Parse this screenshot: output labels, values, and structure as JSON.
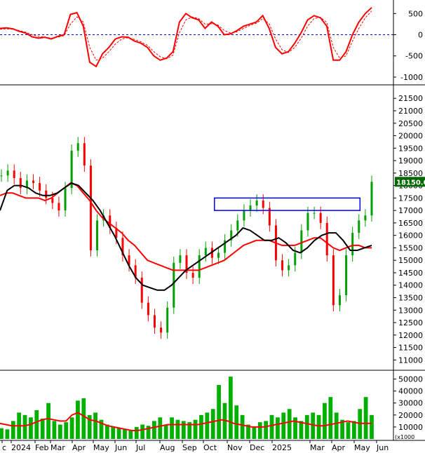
{
  "chart_data": [
    {
      "type": "line",
      "panel": "oscillator",
      "yticks": [
        500,
        0,
        -500,
        -1000
      ],
      "ylim": [
        -1100,
        720
      ],
      "zero_line": true,
      "series": [
        {
          "style": "solid",
          "color": "#ff0000",
          "values": [
            150,
            160,
            140,
            80,
            40,
            -50,
            -80,
            -60,
            -100,
            -40,
            0,
            480,
            520,
            200,
            -650,
            -750,
            -450,
            -300,
            -100,
            -50,
            -60,
            -150,
            -200,
            -300,
            -500,
            -600,
            -550,
            -400,
            300,
            500,
            400,
            350,
            150,
            300,
            200,
            0,
            20,
            100,
            200,
            250,
            300,
            450,
            150,
            -300,
            -450,
            -400,
            -200,
            50,
            350,
            450,
            400,
            200,
            -600,
            -600,
            -400,
            0,
            300,
            500,
            640
          ]
        },
        {
          "style": "dashed",
          "color": "#ff0000",
          "values": [
            130,
            140,
            130,
            100,
            60,
            0,
            -40,
            -60,
            -80,
            -60,
            -20,
            250,
            420,
            300,
            -300,
            -600,
            -550,
            -400,
            -220,
            -100,
            -70,
            -110,
            -170,
            -250,
            -400,
            -520,
            -570,
            -480,
            50,
            350,
            420,
            380,
            250,
            260,
            230,
            100,
            40,
            70,
            150,
            220,
            270,
            380,
            260,
            -100,
            -350,
            -420,
            -300,
            -80,
            200,
            380,
            410,
            290,
            -300,
            -550,
            -500,
            -150,
            150,
            400,
            560
          ]
        }
      ]
    },
    {
      "type": "line",
      "panel": "price",
      "yticks": [
        21500,
        21000,
        20500,
        20000,
        19500,
        19000,
        18500,
        18000,
        17500,
        17000,
        16500,
        16000,
        15500,
        15000,
        14500,
        14000,
        13500,
        13000,
        12500,
        12000,
        11500,
        11000
      ],
      "ylim": [
        10700,
        21900
      ],
      "last_price_label": "18150.00",
      "close": [
        18400,
        18600,
        18300,
        17900,
        18200,
        18100,
        17800,
        17500,
        17300,
        17000,
        17900,
        19400,
        19700,
        18800,
        15400,
        16600,
        16800,
        16300,
        15900,
        15200,
        14800,
        14300,
        13300,
        12800,
        12300,
        12100,
        13100,
        14900,
        15200,
        14500,
        14300,
        15200,
        15500,
        15100,
        15300,
        15800,
        16200,
        16600,
        17000,
        17200,
        17400,
        17100,
        16400,
        15000,
        14600,
        14800,
        15300,
        16200,
        16900,
        16900,
        16500,
        15200,
        13200,
        13600,
        15200,
        16100,
        16600,
        16800,
        18150
      ],
      "series": [
        {
          "color": "#ff0000",
          "values": [
            17600,
            17700,
            17700,
            17600,
            17500,
            17500,
            17500,
            17400,
            17500,
            17700,
            17900,
            18100,
            18000,
            17700,
            17400,
            17000,
            16700,
            16500,
            16300,
            16100,
            15800,
            15600,
            15300,
            15000,
            14900,
            14800,
            14700,
            14600,
            14600,
            14600,
            14600,
            14600,
            14700,
            14800,
            14900,
            15000,
            15200,
            15400,
            15600,
            15700,
            15800,
            15800,
            15800,
            15700,
            15600,
            15600,
            15600,
            15700,
            15800,
            15900,
            15900,
            15700,
            15500,
            15400,
            15500,
            15600,
            15600,
            15500,
            15500
          ]
        },
        {
          "color": "#000000",
          "values": [
            17000,
            17800,
            18000,
            18000,
            17900,
            17700,
            17600,
            17600,
            17700,
            17900,
            18100,
            18000,
            17700,
            17400,
            17000,
            16500,
            16000,
            15400,
            14800,
            14300,
            14000,
            13900,
            13800,
            13800,
            14000,
            14300,
            14600,
            14800,
            15000,
            15200,
            15400,
            15600,
            15800,
            16000,
            16300,
            16200,
            16000,
            15800,
            15800,
            15900,
            15700,
            15400,
            15300,
            15500,
            15800,
            16000,
            16100,
            16100,
            15800,
            15400,
            15400,
            15500,
            15600
          ]
        }
      ],
      "resistance_box": {
        "x_start": 0.545,
        "x_end": 0.915,
        "y_low": 17000,
        "y_high": 17500,
        "color": "#0000ff"
      }
    },
    {
      "type": "bar",
      "panel": "volume",
      "yticks": [
        50000,
        40000,
        30000,
        20000,
        10000
      ],
      "ylim": [
        0,
        55000
      ],
      "scale_note": "(x1000",
      "values": [
        9000,
        8000,
        15000,
        22000,
        20000,
        18000,
        24000,
        17000,
        30000,
        15000,
        12000,
        14000,
        18000,
        32000,
        34000,
        20000,
        22000,
        16000,
        12000,
        10000,
        9000,
        8000,
        7000,
        10000,
        12000,
        11000,
        15000,
        18000,
        12000,
        18000,
        16000,
        15000,
        14000,
        16000,
        20000,
        22000,
        25000,
        45000,
        30000,
        52000,
        28000,
        20000,
        12000,
        10000,
        14000,
        15000,
        20000,
        18000,
        22000,
        25000,
        18000,
        15000,
        20000,
        22000,
        20000,
        30000,
        35000,
        22000,
        16000,
        14000,
        15000,
        25000,
        35000,
        20000
      ],
      "series": [
        {
          "color": "#ff0000",
          "values": [
            13000,
            12000,
            11000,
            11000,
            11000,
            12000,
            14000,
            16000,
            17000,
            16000,
            15000,
            15000,
            20000,
            22000,
            19000,
            16000,
            15000,
            13000,
            11000,
            10000,
            9000,
            8000,
            7000,
            7000,
            8000,
            9000,
            10000,
            11000,
            12000,
            12000,
            12000,
            12000,
            12000,
            12000,
            13000,
            14000,
            15000,
            16000,
            15000,
            13000,
            12000,
            11000,
            10000,
            10000,
            10000,
            11000,
            12000,
            13000,
            14000,
            15000,
            14000,
            13000,
            12000,
            11000,
            11000,
            12000,
            13000,
            14000,
            15000,
            14000,
            13000,
            13000,
            13000
          ]
        }
      ]
    },
    {
      "type": "axis",
      "panel": "time-axis",
      "categories": [
        "c",
        "2024",
        "Feb",
        "Mar",
        "Apr",
        "May",
        "Jun",
        "Jul",
        "Aug",
        "Sep",
        "Oct",
        "Nov",
        "Dec",
        "2025",
        "Mar",
        "Apr",
        "May",
        "Jun"
      ]
    }
  ]
}
